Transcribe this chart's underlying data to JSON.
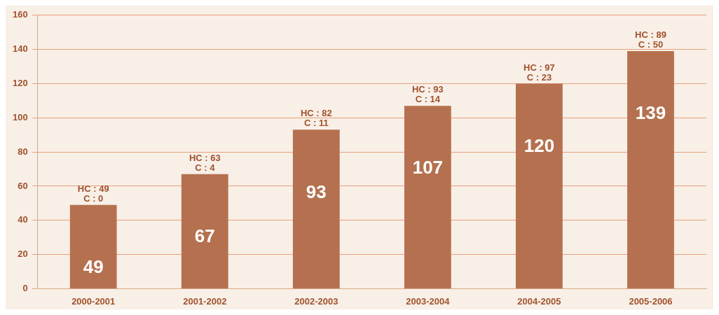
{
  "chart_data": {
    "type": "bar",
    "categories": [
      "2000-2001",
      "2001-2002",
      "2002-2003",
      "2003-2004",
      "2004-2005",
      "2005-2006"
    ],
    "values": [
      49,
      67,
      93,
      107,
      120,
      139
    ],
    "color": "#b5714f",
    "ylim": [
      0,
      160
    ],
    "yticks": [
      0,
      20,
      40,
      60,
      80,
      100,
      120,
      140,
      160
    ],
    "grid": "y",
    "data_labels": true,
    "annotations": [
      {
        "text": "HC : 49\nC : 0",
        "x": "2000-2001",
        "y": 49
      },
      {
        "text": "HC : 63\nC : 4",
        "x": "2001-2002",
        "y": 67
      },
      {
        "text": "HC : 82\nC : 11",
        "x": "2002-2003",
        "y": 93
      },
      {
        "text": "HC : 93\nC : 14",
        "x": "2003-2004",
        "y": 107
      },
      {
        "text": "HC : 97\nC : 23",
        "x": "2004-2005",
        "y": 120
      },
      {
        "text": "HC : 89\nC : 50",
        "x": "2005-2006",
        "y": 139
      }
    ]
  }
}
